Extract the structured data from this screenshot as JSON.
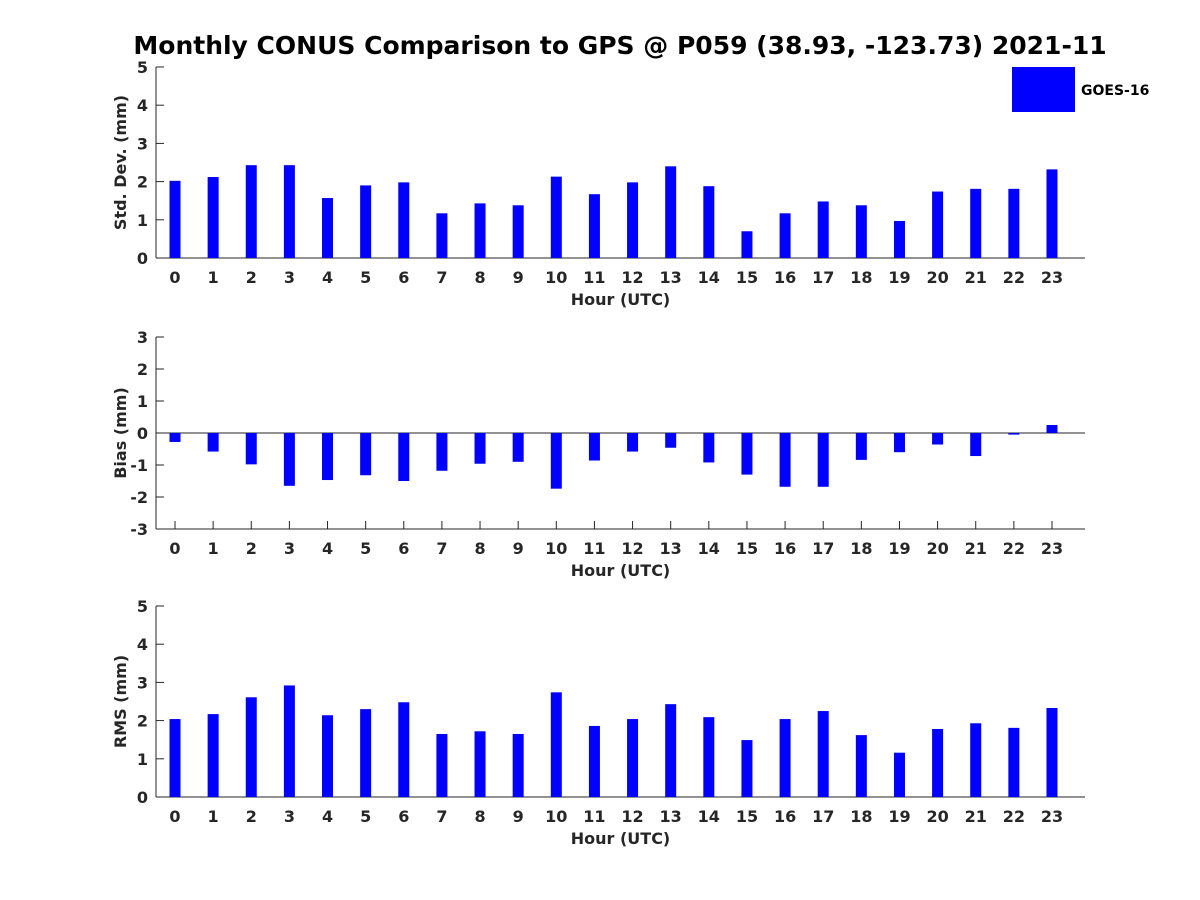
{
  "title": "Monthly CONUS Comparison to GPS @ P059 (38.93, -123.73) 2021-11",
  "legend": {
    "label": "GOES-16",
    "color": "#0000ff",
    "placement": "top-right"
  },
  "chart_data": [
    {
      "type": "bar",
      "xlabel": "Hour (UTC)",
      "ylabel": "Std. Dev. (mm)",
      "ylim": [
        0,
        5
      ],
      "yticks": [
        "0",
        "1",
        "2",
        "3",
        "4",
        "5"
      ],
      "categories": [
        "0",
        "1",
        "2",
        "3",
        "4",
        "5",
        "6",
        "7",
        "8",
        "9",
        "10",
        "11",
        "12",
        "13",
        "14",
        "15",
        "16",
        "17",
        "18",
        "19",
        "20",
        "21",
        "22",
        "23"
      ],
      "series": [
        {
          "name": "GOES-16",
          "color": "#0000ff",
          "values": [
            2.02,
            2.12,
            2.43,
            2.43,
            1.57,
            1.9,
            1.98,
            1.17,
            1.43,
            1.38,
            2.13,
            1.67,
            1.98,
            2.4,
            1.88,
            0.7,
            1.17,
            1.48,
            1.38,
            0.97,
            1.74,
            1.81,
            1.81,
            2.32
          ]
        }
      ]
    },
    {
      "type": "bar",
      "xlabel": "Hour (UTC)",
      "ylabel": "Bias (mm)",
      "ylim": [
        -3,
        3
      ],
      "yticks": [
        "-3",
        "-2",
        "-1",
        "0",
        "1",
        "2",
        "3"
      ],
      "categories": [
        "0",
        "1",
        "2",
        "3",
        "4",
        "5",
        "6",
        "7",
        "8",
        "9",
        "10",
        "11",
        "12",
        "13",
        "14",
        "15",
        "16",
        "17",
        "18",
        "19",
        "20",
        "21",
        "22",
        "23"
      ],
      "series": [
        {
          "name": "GOES-16",
          "color": "#0000ff",
          "values": [
            -0.28,
            -0.58,
            -0.98,
            -1.65,
            -1.47,
            -1.32,
            -1.5,
            -1.18,
            -0.96,
            -0.9,
            -1.74,
            -0.86,
            -0.58,
            -0.46,
            -0.92,
            -1.3,
            -1.68,
            -1.68,
            -0.84,
            -0.6,
            -0.36,
            -0.72,
            -0.05,
            0.25
          ]
        }
      ]
    },
    {
      "type": "bar",
      "xlabel": "Hour (UTC)",
      "ylabel": "RMS (mm)",
      "ylim": [
        0,
        5
      ],
      "yticks": [
        "0",
        "1",
        "2",
        "3",
        "4",
        "5"
      ],
      "categories": [
        "0",
        "1",
        "2",
        "3",
        "4",
        "5",
        "6",
        "7",
        "8",
        "9",
        "10",
        "11",
        "12",
        "13",
        "14",
        "15",
        "16",
        "17",
        "18",
        "19",
        "20",
        "21",
        "22",
        "23"
      ],
      "series": [
        {
          "name": "GOES-16",
          "color": "#0000ff",
          "values": [
            2.04,
            2.17,
            2.61,
            2.92,
            2.14,
            2.3,
            2.48,
            1.65,
            1.72,
            1.65,
            2.74,
            1.86,
            2.04,
            2.43,
            2.09,
            1.49,
            2.04,
            2.25,
            1.62,
            1.16,
            1.78,
            1.93,
            1.81,
            2.33
          ]
        }
      ]
    }
  ]
}
